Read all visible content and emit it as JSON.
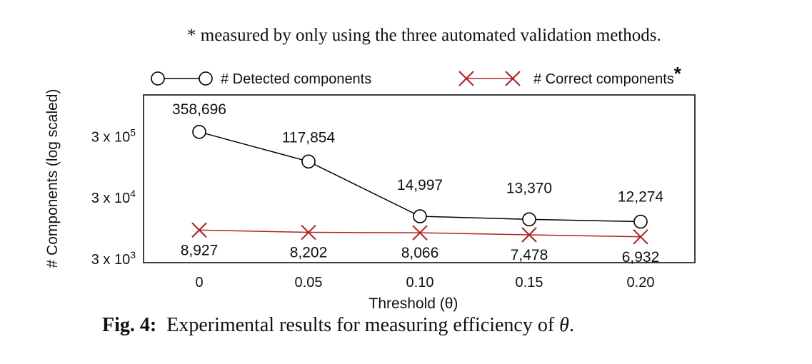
{
  "note": "* measured by only using the three automated validation methods.",
  "caption": {
    "label": "Fig. 4:",
    "text": "Experimental results for measuring efficiency of",
    "symbol": "θ",
    "end": "."
  },
  "chart_data": {
    "type": "line",
    "xlabel": "Threshold (θ)",
    "ylabel": "# Components (log scaled)",
    "y_scale": "log",
    "categories": [
      "0",
      "0.05",
      "0.10",
      "0.15",
      "0.20"
    ],
    "x": [
      0,
      0.05,
      0.1,
      0.15,
      0.2
    ],
    "yticks": [
      {
        "value": 3000,
        "base": "3 x 10",
        "exp": "3"
      },
      {
        "value": 30000,
        "base": "3 x 10",
        "exp": "4"
      },
      {
        "value": 300000,
        "base": "3 x 10",
        "exp": "5"
      }
    ],
    "legend_position": "top",
    "series": [
      {
        "name": "# Detected components",
        "marker": "circle",
        "color": "#000000",
        "values": [
          358696,
          117854,
          14997,
          13370,
          12274
        ],
        "labels": [
          "358,696",
          "117,854",
          "14,997",
          "13,370",
          "12,274"
        ]
      },
      {
        "name": "# Correct components",
        "name_suffix": "*",
        "marker": "x",
        "color": "#b22222",
        "values": [
          8927,
          8202,
          8066,
          7478,
          6932
        ],
        "labels": [
          "8,927",
          "8,202",
          "8,066",
          "7,478",
          "6,932"
        ]
      }
    ]
  }
}
